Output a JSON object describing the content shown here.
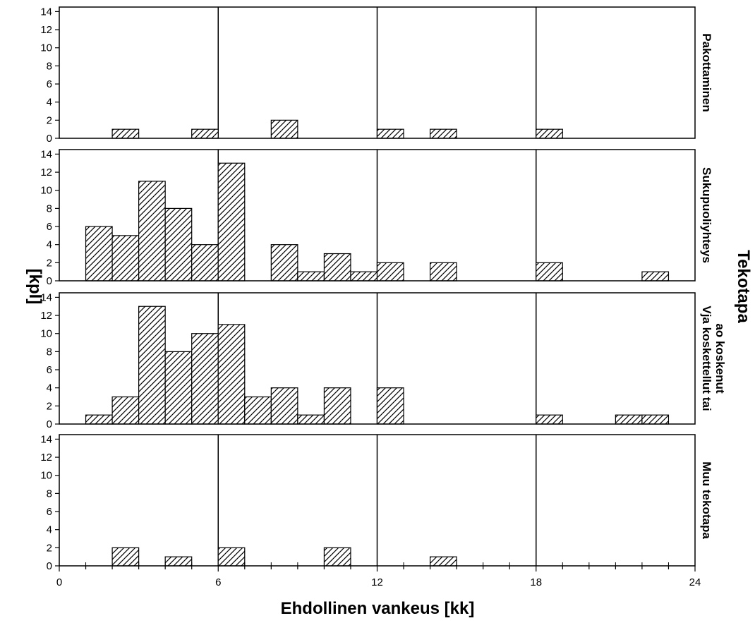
{
  "chart_data": {
    "type": "bar",
    "subtype": "faceted-histogram",
    "xlabel": "Ehdollinen vankeus [kk]",
    "ylabel": "[kpl]",
    "facet_title": "Tekotapa",
    "xlim": [
      0,
      24
    ],
    "ylim": [
      0,
      14.5
    ],
    "x_ticks": [
      0,
      6,
      12,
      18,
      24
    ],
    "x_minor_step": 1,
    "y_ticks": [
      0,
      2,
      4,
      6,
      8,
      10,
      12,
      14
    ],
    "bin_width": 1,
    "vertical_reference_lines": [
      6,
      12,
      18
    ],
    "bar_fill": "diagonal-hatch",
    "bar_color": "#000000",
    "background": "#ffffff",
    "panels": [
      {
        "name": "Pakottaminen",
        "label_lines": [
          "Pakottaminen"
        ],
        "bins": [
          {
            "x": 2,
            "count": 1
          },
          {
            "x": 5,
            "count": 1
          },
          {
            "x": 8,
            "count": 2
          },
          {
            "x": 12,
            "count": 1
          },
          {
            "x": 14,
            "count": 1
          },
          {
            "x": 18,
            "count": 1
          }
        ]
      },
      {
        "name": "Sukupuoliyhteys",
        "label_lines": [
          "Sukupuoliyhteys"
        ],
        "bins": [
          {
            "x": 1,
            "count": 6
          },
          {
            "x": 2,
            "count": 5
          },
          {
            "x": 3,
            "count": 11
          },
          {
            "x": 4,
            "count": 8
          },
          {
            "x": 5,
            "count": 4
          },
          {
            "x": 6,
            "count": 13
          },
          {
            "x": 8,
            "count": 4
          },
          {
            "x": 9,
            "count": 1
          },
          {
            "x": 10,
            "count": 3
          },
          {
            "x": 11,
            "count": 1
          },
          {
            "x": 12,
            "count": 2
          },
          {
            "x": 14,
            "count": 2
          },
          {
            "x": 18,
            "count": 2
          },
          {
            "x": 22,
            "count": 1
          }
        ]
      },
      {
        "name": "Vja koskettellut tai ao koskenut",
        "label_lines": [
          "Vja koskettellut tai",
          "ao koskenut"
        ],
        "bins": [
          {
            "x": 1,
            "count": 1
          },
          {
            "x": 2,
            "count": 3
          },
          {
            "x": 3,
            "count": 13
          },
          {
            "x": 4,
            "count": 8
          },
          {
            "x": 5,
            "count": 10
          },
          {
            "x": 6,
            "count": 11
          },
          {
            "x": 7,
            "count": 3
          },
          {
            "x": 8,
            "count": 4
          },
          {
            "x": 9,
            "count": 1
          },
          {
            "x": 10,
            "count": 4
          },
          {
            "x": 12,
            "count": 4
          },
          {
            "x": 18,
            "count": 1
          },
          {
            "x": 21,
            "count": 1
          },
          {
            "x": 22,
            "count": 1
          }
        ]
      },
      {
        "name": "Muu tekotapa",
        "label_lines": [
          "Muu tekotapa"
        ],
        "bins": [
          {
            "x": 2,
            "count": 2
          },
          {
            "x": 4,
            "count": 1
          },
          {
            "x": 6,
            "count": 2
          },
          {
            "x": 10,
            "count": 2
          },
          {
            "x": 14,
            "count": 1
          }
        ]
      }
    ]
  }
}
